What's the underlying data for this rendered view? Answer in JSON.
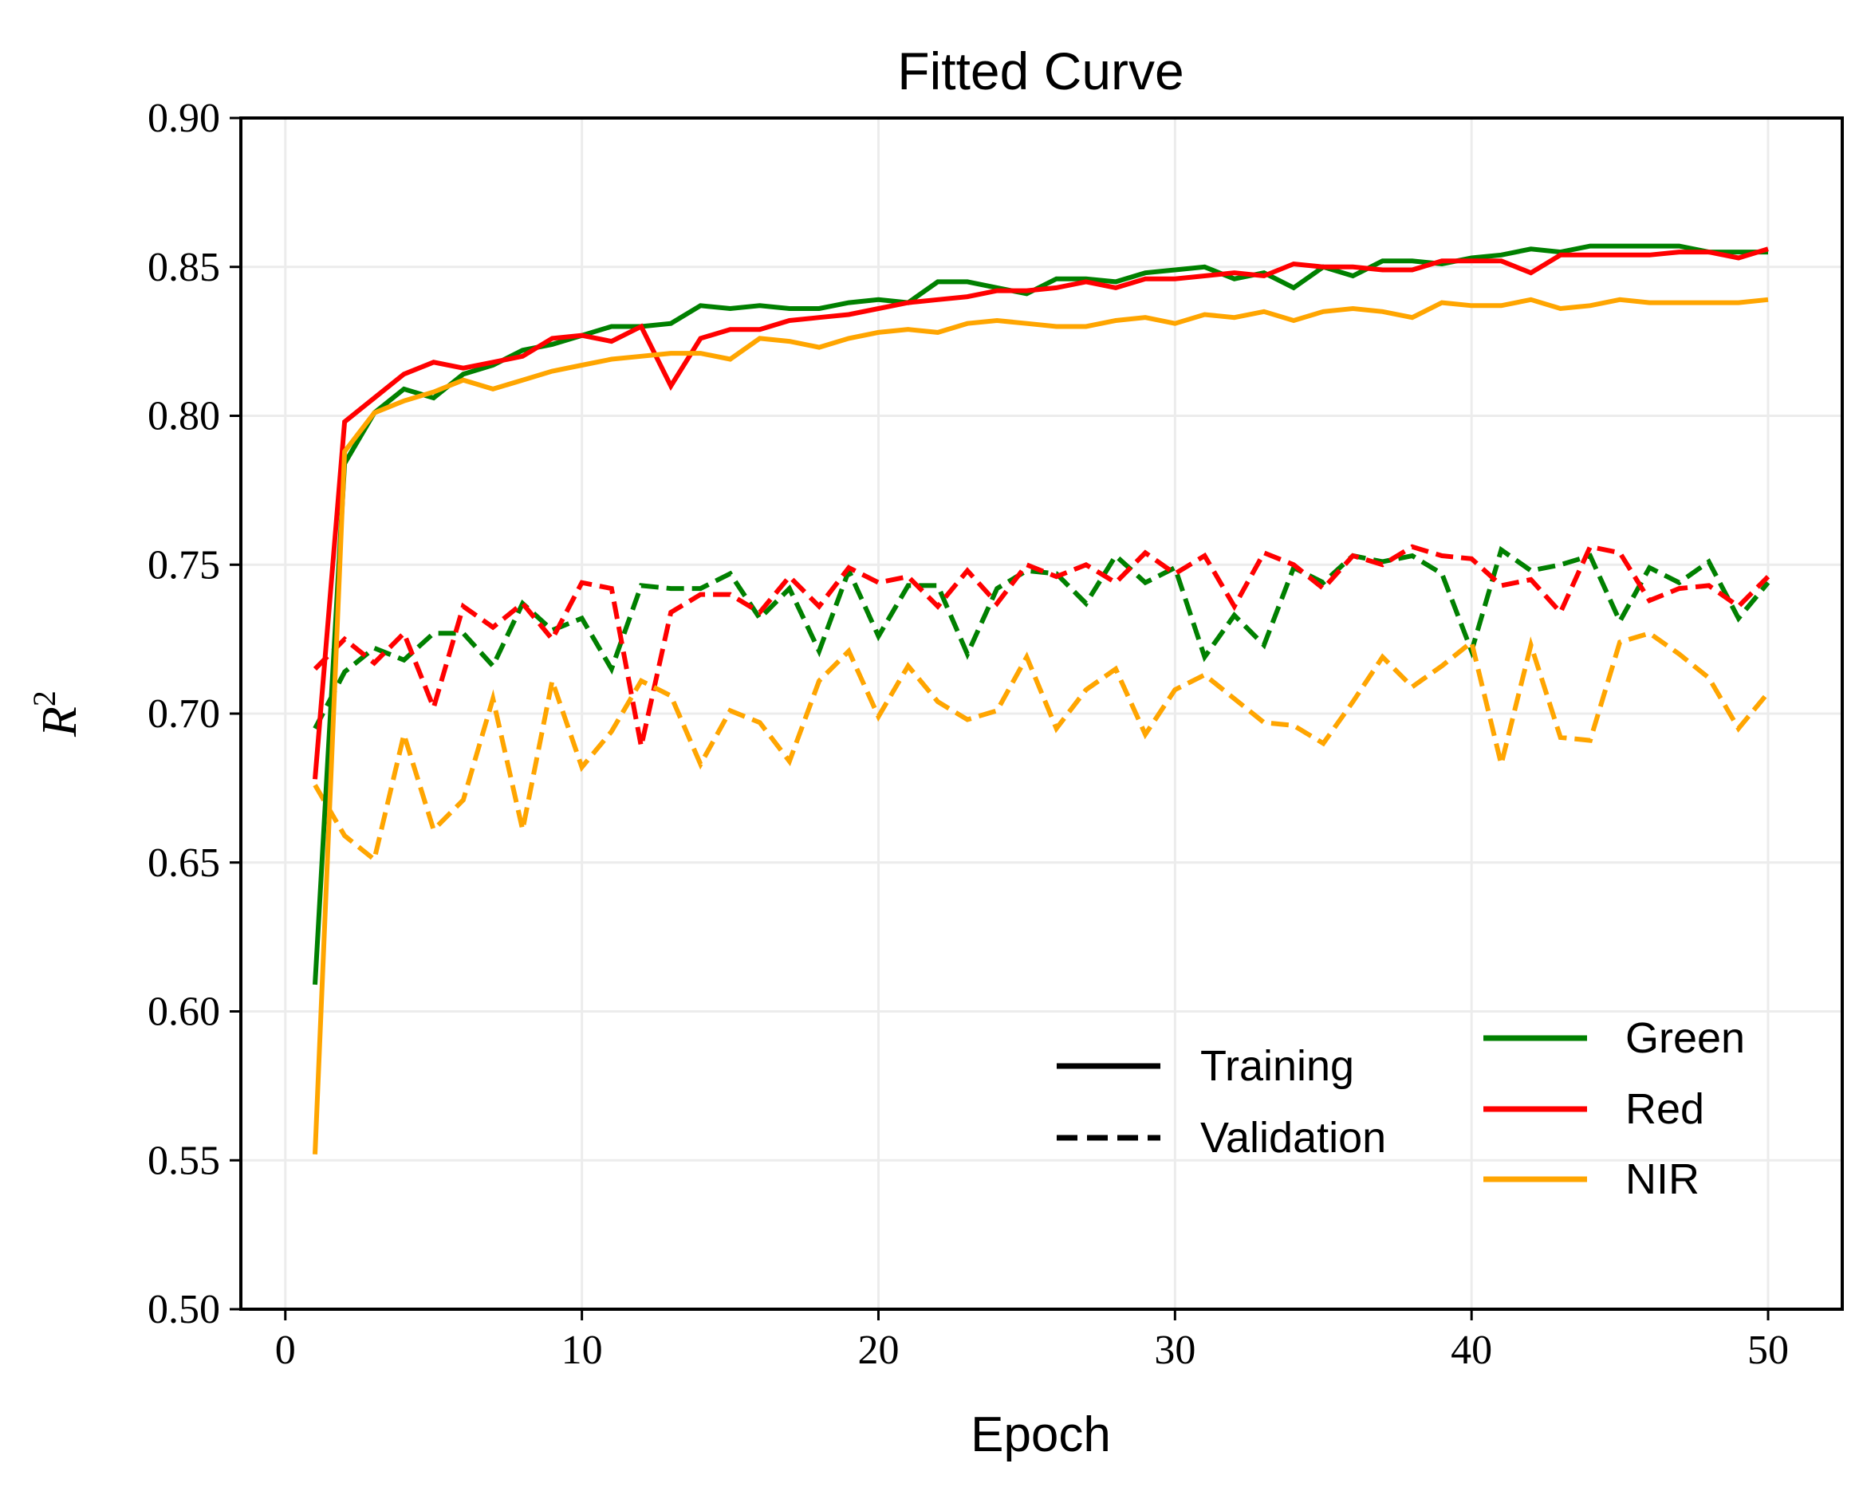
{
  "chart_data": {
    "type": "line",
    "title": "Fitted Curve",
    "xlabel": "Epoch",
    "ylabel_base": "R",
    "ylabel_sup": "2",
    "xlim": [
      -1.5,
      52.5
    ],
    "ylim": [
      0.5,
      0.9
    ],
    "xticks": [
      0,
      10,
      20,
      30,
      40,
      50
    ],
    "xtick_labels": [
      "0",
      "10",
      "20",
      "30",
      "40",
      "50"
    ],
    "yticks": [
      0.5,
      0.55,
      0.6,
      0.65,
      0.7,
      0.75,
      0.8,
      0.85,
      0.9
    ],
    "ytick_labels": [
      "0.50",
      "0.55",
      "0.60",
      "0.65",
      "0.70",
      "0.75",
      "0.80",
      "0.85",
      "0.90"
    ],
    "grid": true,
    "legend_styles": {
      "placement": "bottom-center",
      "items": [
        {
          "label": "Training",
          "dash": "solid"
        },
        {
          "label": "Validation",
          "dash": "dashed"
        }
      ]
    },
    "legend_colors": {
      "placement": "bottom-right",
      "items": [
        {
          "label": "Green",
          "color": "#008000"
        },
        {
          "label": "Red",
          "color": "#ff0000"
        },
        {
          "label": "NIR",
          "color": "#ffa500"
        }
      ]
    },
    "x": [
      1,
      2,
      3,
      4,
      5,
      6,
      7,
      8,
      9,
      10,
      11,
      12,
      13,
      14,
      15,
      16,
      17,
      18,
      19,
      20,
      21,
      22,
      23,
      24,
      25,
      26,
      27,
      28,
      29,
      30,
      31,
      32,
      33,
      34,
      35,
      36,
      37,
      38,
      39,
      40,
      41,
      42,
      43,
      44,
      45,
      46,
      47,
      48,
      49,
      50
    ],
    "series": [
      {
        "name": "Green Training",
        "band": "Green",
        "kind": "Training",
        "color": "#008000",
        "dash": "solid",
        "values": [
          0.609,
          0.784,
          0.801,
          0.809,
          0.806,
          0.814,
          0.817,
          0.822,
          0.824,
          0.827,
          0.83,
          0.83,
          0.831,
          0.837,
          0.836,
          0.837,
          0.836,
          0.836,
          0.838,
          0.839,
          0.838,
          0.845,
          0.845,
          0.843,
          0.841,
          0.846,
          0.846,
          0.845,
          0.848,
          0.849,
          0.85,
          0.846,
          0.848,
          0.843,
          0.85,
          0.847,
          0.852,
          0.852,
          0.851,
          0.853,
          0.854,
          0.856,
          0.855,
          0.857,
          0.857,
          0.857,
          0.857,
          0.855,
          0.855,
          0.855
        ]
      },
      {
        "name": "Red Training",
        "band": "Red",
        "kind": "Training",
        "color": "#ff0000",
        "dash": "solid",
        "values": [
          0.678,
          0.798,
          0.806,
          0.814,
          0.818,
          0.816,
          0.818,
          0.82,
          0.826,
          0.827,
          0.825,
          0.83,
          0.81,
          0.826,
          0.829,
          0.829,
          0.832,
          0.833,
          0.834,
          0.836,
          0.838,
          0.839,
          0.84,
          0.842,
          0.842,
          0.843,
          0.845,
          0.843,
          0.846,
          0.846,
          0.847,
          0.848,
          0.847,
          0.851,
          0.85,
          0.85,
          0.849,
          0.849,
          0.852,
          0.852,
          0.852,
          0.848,
          0.854,
          0.854,
          0.854,
          0.854,
          0.855,
          0.855,
          0.853,
          0.856
        ]
      },
      {
        "name": "NIR Training",
        "band": "NIR",
        "kind": "Training",
        "color": "#ffa500",
        "dash": "solid",
        "values": [
          0.552,
          0.788,
          0.801,
          0.805,
          0.808,
          0.812,
          0.809,
          0.812,
          0.815,
          0.817,
          0.819,
          0.82,
          0.821,
          0.821,
          0.819,
          0.826,
          0.825,
          0.823,
          0.826,
          0.828,
          0.829,
          0.828,
          0.831,
          0.832,
          0.831,
          0.83,
          0.83,
          0.832,
          0.833,
          0.831,
          0.834,
          0.833,
          0.835,
          0.832,
          0.835,
          0.836,
          0.835,
          0.833,
          0.838,
          0.837,
          0.837,
          0.839,
          0.836,
          0.837,
          0.839,
          0.838,
          0.838,
          0.838,
          0.838,
          0.839
        ]
      },
      {
        "name": "Green Validation",
        "band": "Green",
        "kind": "Validation",
        "color": "#008000",
        "dash": "dashed",
        "values": [
          0.695,
          0.714,
          0.722,
          0.718,
          0.727,
          0.727,
          0.716,
          0.737,
          0.728,
          0.732,
          0.715,
          0.743,
          0.742,
          0.742,
          0.747,
          0.732,
          0.742,
          0.721,
          0.748,
          0.726,
          0.743,
          0.743,
          0.72,
          0.742,
          0.748,
          0.747,
          0.737,
          0.753,
          0.744,
          0.749,
          0.719,
          0.733,
          0.723,
          0.749,
          0.744,
          0.753,
          0.751,
          0.753,
          0.747,
          0.721,
          0.755,
          0.748,
          0.75,
          0.753,
          0.731,
          0.749,
          0.744,
          0.751,
          0.732,
          0.744
        ]
      },
      {
        "name": "Red Validation",
        "band": "Red",
        "kind": "Validation",
        "color": "#ff0000",
        "dash": "dashed",
        "values": [
          0.715,
          0.725,
          0.717,
          0.727,
          0.702,
          0.736,
          0.729,
          0.737,
          0.725,
          0.744,
          0.742,
          0.689,
          0.734,
          0.74,
          0.74,
          0.734,
          0.746,
          0.736,
          0.749,
          0.744,
          0.746,
          0.736,
          0.748,
          0.737,
          0.75,
          0.746,
          0.75,
          0.744,
          0.754,
          0.747,
          0.753,
          0.736,
          0.754,
          0.75,
          0.742,
          0.753,
          0.75,
          0.756,
          0.753,
          0.752,
          0.743,
          0.745,
          0.734,
          0.756,
          0.754,
          0.738,
          0.742,
          0.743,
          0.736,
          0.746
        ]
      },
      {
        "name": "NIR Validation",
        "band": "NIR",
        "kind": "Validation",
        "color": "#ffa500",
        "dash": "dashed",
        "values": [
          0.676,
          0.659,
          0.651,
          0.693,
          0.661,
          0.671,
          0.705,
          0.661,
          0.711,
          0.682,
          0.694,
          0.711,
          0.706,
          0.683,
          0.701,
          0.697,
          0.684,
          0.711,
          0.721,
          0.699,
          0.716,
          0.704,
          0.698,
          0.701,
          0.719,
          0.695,
          0.708,
          0.715,
          0.693,
          0.708,
          0.713,
          0.705,
          0.697,
          0.696,
          0.69,
          0.704,
          0.719,
          0.709,
          0.716,
          0.724,
          0.683,
          0.723,
          0.692,
          0.691,
          0.724,
          0.727,
          0.72,
          0.712,
          0.695,
          0.707
        ]
      }
    ]
  }
}
